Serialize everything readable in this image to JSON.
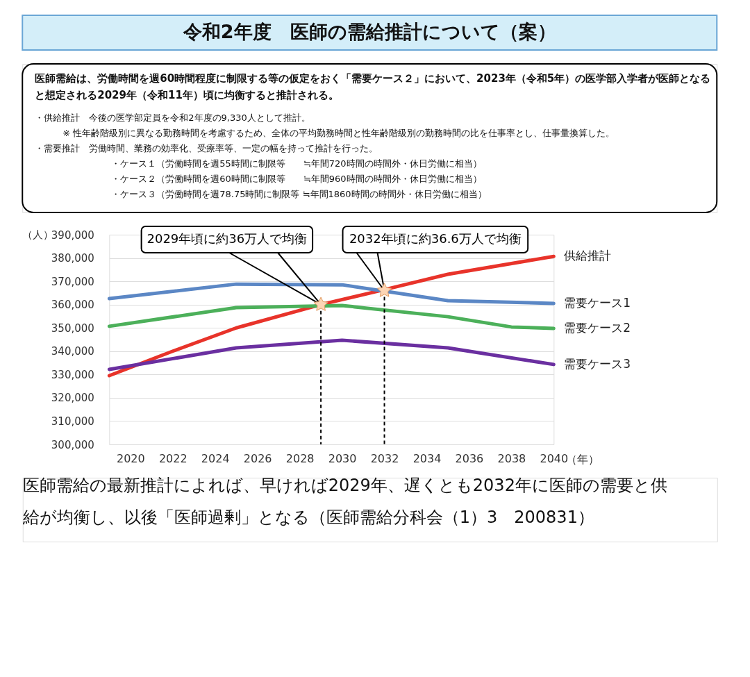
{
  "chart_data": {
    "type": "line",
    "title": "令和2年度　医師の需給推計について（案）",
    "subtitle": "医師需給は、労働時間を週60時間程度に制限する等の仮定をおく「需要ケース２」において、2023年（令和5年）の医学部入学者が医師となると想定される2029年（令和11年）頃に均衡すると推計される。",
    "xlabel": "（年）",
    "ylabel": "（人）",
    "series": [
      {
        "name": "供給推計",
        "color": "#e8332a",
        "x": [
          2019,
          2022,
          2025,
          2029,
          2032,
          2035,
          2040
        ],
        "values": [
          329500,
          340000,
          350000,
          360000,
          366400,
          373000,
          380700
        ]
      },
      {
        "name": "需要ケース1",
        "color": "#5b87c5",
        "x": [
          2019,
          2025,
          2030,
          2035,
          2040
        ],
        "values": [
          362600,
          368800,
          368500,
          361700,
          360500
        ]
      },
      {
        "name": "需要ケース2",
        "color": "#4cb05a",
        "x": [
          2019,
          2025,
          2030,
          2035,
          2038,
          2040
        ],
        "values": [
          350700,
          358700,
          359600,
          354800,
          350400,
          349800
        ]
      },
      {
        "name": "需要ケース3",
        "color": "#6a2fa0",
        "x": [
          2019,
          2025,
          2030,
          2035,
          2040
        ],
        "values": [
          332200,
          341400,
          344700,
          341400,
          334300
        ]
      }
    ],
    "xlim": [
      2019,
      2040
    ],
    "ylim": [
      300000,
      390000
    ],
    "xticks": [
      2020,
      2022,
      2024,
      2026,
      2028,
      2030,
      2032,
      2034,
      2036,
      2038,
      2040
    ],
    "yticks": [
      {
        "value": 300000,
        "label": "300,000"
      },
      {
        "value": 310000,
        "label": "310,000"
      },
      {
        "value": 320000,
        "label": "320,000"
      },
      {
        "value": 330000,
        "label": "330,000"
      },
      {
        "value": 340000,
        "label": "340,000"
      },
      {
        "value": 350000,
        "label": "350,000"
      },
      {
        "value": 360000,
        "label": "360,000"
      },
      {
        "value": 370000,
        "label": "370,000"
      },
      {
        "value": 380000,
        "label": "380,000"
      },
      {
        "value": 390000,
        "label": "390,000"
      }
    ],
    "ref_lines": [
      {
        "axis": "x",
        "value": 2029,
        "line_style": "dashed",
        "color": "#000000"
      },
      {
        "axis": "x",
        "value": 2032,
        "line_style": "dashed",
        "color": "#000000"
      }
    ],
    "annotations": [
      {
        "text": "2029年頃に約36万人で均衡",
        "x": 2029,
        "y": 360000
      },
      {
        "text": "2032年頃に約36.6万人で均衡",
        "x": 2032,
        "y": 366000
      },
      "・供給推計　今後の医学部定員を令和2年度の9,330人として推計。",
      "※ 性年齢階級別に異なる勤務時間を考慮するため、全体の平均勤務時間と性年齢階級別の勤務時間の比を仕事率とし、仕事量換算した。",
      "・需要推計　労働時間、業務の効率化、受療率等、一定の幅を持って推計を行った。",
      "・ケース１（労働時間を週55時間に制限等　　≒年間720時間の時間外・休日労働に相当）",
      "・ケース２（労働時間を週60時間に制限等　　≒年間960時間の時間外・休日労働に相当）",
      "・ケース３（労働時間を週78.75時間に制限等 ≒年間1860時間の時間外・休日労働に相当）",
      "医師需給の最新推計によれば、早ければ2029年、遅くとも2032年に医師の需要と供給が均衡し、以後「医師過剰」となる（医師需給分科会（1）3　200831）"
    ],
    "grid": "y",
    "legend": false,
    "line_style": "solid",
    "marker": "none"
  }
}
